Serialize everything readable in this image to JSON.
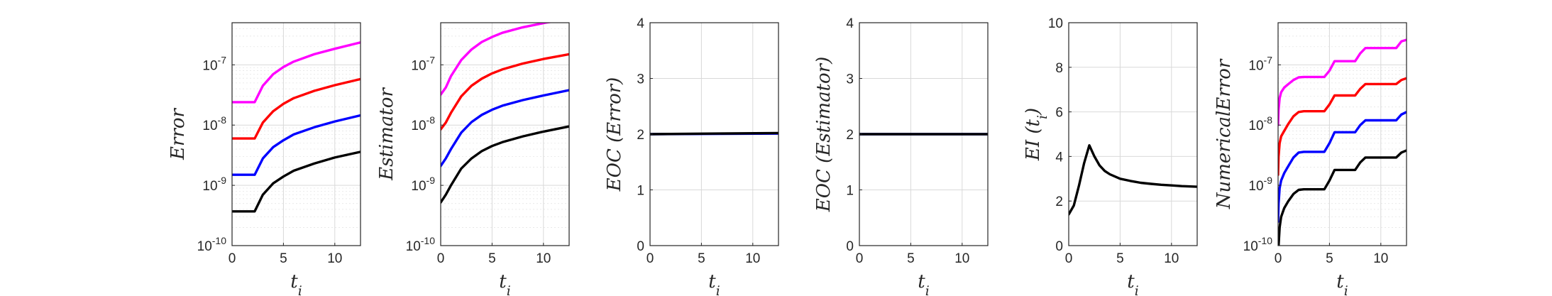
{
  "chart_data": [
    {
      "type": "line",
      "xlabel": "t_i",
      "ylabel": "Error",
      "xlim": [
        0,
        12.5
      ],
      "yscale": "log",
      "ylim": [
        1e-10,
        5e-07
      ],
      "xticks": [
        "0",
        "5",
        "10"
      ],
      "yticks": [
        "10^-10",
        "10^-9",
        "10^-8",
        "10^-7"
      ],
      "grid": true,
      "series": [
        {
          "color": "#ff00ff",
          "x": [
            0,
            2.2,
            3,
            4,
            5,
            6,
            8,
            10,
            12.5
          ],
          "y": [
            2.4e-08,
            2.4e-08,
            4.5e-08,
            7e-08,
            9.2e-08,
            1.13e-07,
            1.5e-07,
            1.85e-07,
            2.35e-07
          ]
        },
        {
          "color": "#ff0000",
          "x": [
            0,
            2.2,
            3,
            4,
            5,
            6,
            8,
            10,
            12.5
          ],
          "y": [
            6e-09,
            6e-09,
            1.1e-08,
            1.7e-08,
            2.25e-08,
            2.8e-08,
            3.7e-08,
            4.6e-08,
            5.8e-08
          ]
        },
        {
          "color": "#0000ff",
          "x": [
            0,
            2.2,
            3,
            4,
            5,
            6,
            8,
            10,
            12.5
          ],
          "y": [
            1.5e-09,
            1.5e-09,
            2.8e-09,
            4.3e-09,
            5.6e-09,
            7e-09,
            9.2e-09,
            1.15e-08,
            1.45e-08
          ]
        },
        {
          "color": "#000000",
          "x": [
            0,
            2.2,
            3,
            4,
            5,
            6,
            8,
            10,
            12.5
          ],
          "y": [
            3.7e-10,
            3.7e-10,
            7e-10,
            1.08e-09,
            1.4e-09,
            1.75e-09,
            2.3e-09,
            2.9e-09,
            3.6e-09
          ]
        }
      ]
    },
    {
      "type": "line",
      "xlabel": "t_i",
      "ylabel": "Estimator",
      "xlim": [
        0,
        12.5
      ],
      "yscale": "log",
      "ylim": [
        1e-10,
        5e-07
      ],
      "xticks": [
        "0",
        "5",
        "10"
      ],
      "yticks": [
        "10^-10",
        "10^-9",
        "10^-8",
        "10^-7"
      ],
      "grid": true,
      "series": [
        {
          "color": "#ff00ff",
          "x": [
            0,
            0.5,
            1,
            2,
            3,
            4,
            5,
            6,
            8,
            10.2,
            10.8
          ],
          "y": [
            3.2e-08,
            4.2e-08,
            6.5e-08,
            1.2e-07,
            1.8e-07,
            2.4e-07,
            2.9e-07,
            3.4e-07,
            4.2e-07,
            5e-07,
            5.2e-07
          ]
        },
        {
          "color": "#ff0000",
          "x": [
            0,
            0.5,
            1,
            2,
            3,
            4,
            5,
            6,
            8,
            10,
            12.5
          ],
          "y": [
            8.5e-09,
            1.1e-08,
            1.6e-08,
            3e-08,
            4.5e-08,
            5.9e-08,
            7.2e-08,
            8.4e-08,
            1.05e-07,
            1.25e-07,
            1.5e-07
          ]
        },
        {
          "color": "#0000ff",
          "x": [
            0,
            0.5,
            1,
            2,
            3,
            4,
            5,
            6,
            8,
            10,
            12.5
          ],
          "y": [
            2.1e-09,
            2.8e-09,
            4e-09,
            7.5e-09,
            1.12e-08,
            1.48e-08,
            1.8e-08,
            2.1e-08,
            2.6e-08,
            3.1e-08,
            3.8e-08
          ]
        },
        {
          "color": "#000000",
          "x": [
            0,
            0.5,
            1,
            2,
            3,
            4,
            5,
            6,
            8,
            10,
            12.5
          ],
          "y": [
            5.2e-10,
            7e-10,
            1e-09,
            1.9e-09,
            2.8e-09,
            3.7e-09,
            4.5e-09,
            5.2e-09,
            6.5e-09,
            7.8e-09,
            9.5e-09
          ]
        }
      ]
    },
    {
      "type": "line",
      "xlabel": "t_i",
      "ylabel": "EOC (Error)",
      "xlim": [
        0,
        12.5
      ],
      "ylim": [
        0,
        4
      ],
      "xticks": [
        "0",
        "5",
        "10"
      ],
      "yticks": [
        "0",
        "1",
        "2",
        "3",
        "4"
      ],
      "grid": true,
      "series": [
        {
          "color": "#0000ff",
          "x": [
            0,
            12.5
          ],
          "y": [
            2.0,
            2.01
          ]
        },
        {
          "color": "#000000",
          "x": [
            0,
            12.5
          ],
          "y": [
            2.0,
            2.02
          ]
        }
      ]
    },
    {
      "type": "line",
      "xlabel": "t_i",
      "ylabel": "EOC (Estimator)",
      "xlim": [
        0,
        12.5
      ],
      "ylim": [
        0,
        4
      ],
      "xticks": [
        "0",
        "5",
        "10"
      ],
      "yticks": [
        "0",
        "1",
        "2",
        "3",
        "4"
      ],
      "grid": true,
      "series": [
        {
          "color": "#0000ff",
          "x": [
            0,
            12.5
          ],
          "y": [
            2.0,
            2.0
          ]
        },
        {
          "color": "#000000",
          "x": [
            0,
            12.5
          ],
          "y": [
            2.0,
            2.0
          ]
        }
      ]
    },
    {
      "type": "line",
      "xlabel": "t_i",
      "ylabel": "EI (t_i)",
      "xlim": [
        0,
        12.5
      ],
      "ylim": [
        0,
        10
      ],
      "xticks": [
        "0",
        "5",
        "10"
      ],
      "yticks": [
        "0",
        "2",
        "4",
        "6",
        "8",
        "10"
      ],
      "grid": true,
      "series": [
        {
          "color": "#000000",
          "x": [
            0,
            0.5,
            1,
            1.5,
            2,
            2.5,
            3,
            3.5,
            4,
            5,
            6,
            7,
            8,
            9,
            10,
            11,
            12.5
          ],
          "y": [
            1.4,
            1.8,
            2.7,
            3.7,
            4.5,
            4.0,
            3.6,
            3.35,
            3.2,
            3.0,
            2.9,
            2.82,
            2.77,
            2.73,
            2.7,
            2.67,
            2.64
          ]
        }
      ]
    },
    {
      "type": "line",
      "xlabel": "t_i",
      "ylabel": "NumericalError",
      "xlim": [
        0,
        12.5
      ],
      "yscale": "log",
      "ylim": [
        1e-10,
        5e-07
      ],
      "xticks": [
        "0",
        "5",
        "10"
      ],
      "yticks": [
        "10^-10",
        "10^-9",
        "10^-8",
        "10^-7"
      ],
      "grid": true,
      "series": [
        {
          "color": "#ff00ff",
          "x": [
            0,
            0.05,
            0.15,
            0.3,
            0.6,
            1,
            1.5,
            2,
            2.5,
            4.5,
            5,
            5.5,
            7.5,
            8,
            8.5,
            11.5,
            12,
            12.5
          ],
          "y": [
            1e-08,
            1.8e-08,
            2.8e-08,
            3.5e-08,
            4.2e-08,
            4.8e-08,
            5.6e-08,
            6.2e-08,
            6.3e-08,
            6.3e-08,
            8e-08,
            1.15e-07,
            1.15e-07,
            1.55e-07,
            1.9e-07,
            1.9e-07,
            2.45e-07,
            2.6e-07
          ]
        },
        {
          "color": "#ff0000",
          "x": [
            0,
            0.05,
            0.15,
            0.3,
            0.6,
            1,
            1.5,
            2,
            2.5,
            4.5,
            5,
            5.5,
            7.5,
            8,
            8.5,
            11.5,
            12,
            12.5
          ],
          "y": [
            1.5e-09,
            3e-09,
            5e-09,
            6.5e-09,
            8e-09,
            1.05e-08,
            1.4e-08,
            1.65e-08,
            1.7e-08,
            1.7e-08,
            2.2e-08,
            3.1e-08,
            3.1e-08,
            4e-08,
            4.8e-08,
            4.8e-08,
            5.6e-08,
            6e-08
          ]
        },
        {
          "color": "#0000ff",
          "x": [
            0,
            0.05,
            0.15,
            0.3,
            0.6,
            1,
            1.5,
            2,
            2.5,
            4.5,
            5,
            5.5,
            7.5,
            8,
            8.5,
            11.5,
            12,
            12.5
          ],
          "y": [
            2.5e-10,
            5e-10,
            9e-10,
            1.2e-09,
            1.6e-09,
            2.1e-09,
            2.9e-09,
            3.5e-09,
            3.6e-09,
            3.6e-09,
            5e-09,
            7.6e-09,
            7.6e-09,
            1e-08,
            1.2e-08,
            1.2e-08,
            1.5e-08,
            1.65e-08
          ]
        },
        {
          "color": "#000000",
          "x": [
            0.05,
            0.15,
            0.3,
            0.6,
            1,
            1.5,
            2,
            2.5,
            4.5,
            5,
            5.5,
            7.5,
            8,
            8.5,
            11.5,
            12,
            12.5
          ],
          "y": [
            1e-10,
            2e-10,
            3e-10,
            4.2e-10,
            5.5e-10,
            7.2e-10,
            8.4e-10,
            8.6e-10,
            8.6e-10,
            1.2e-09,
            1.8e-09,
            1.8e-09,
            2.4e-09,
            2.9e-09,
            2.9e-09,
            3.5e-09,
            3.8e-09
          ]
        }
      ]
    }
  ]
}
